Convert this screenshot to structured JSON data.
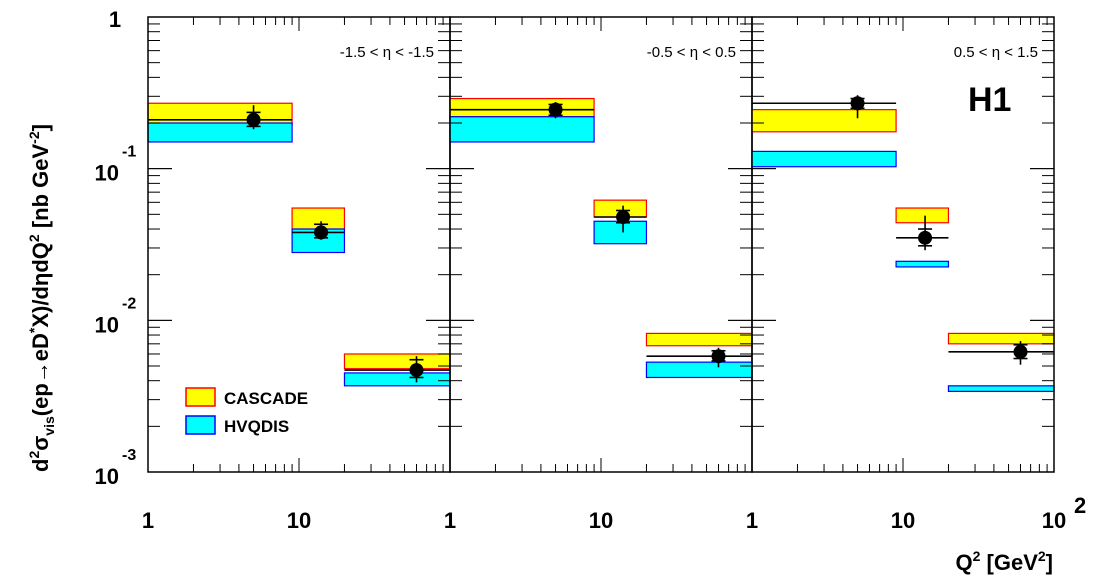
{
  "chart_data": {
    "type": "bar",
    "layout": "three panels sharing y axis",
    "y_scale": "log",
    "x_scale": "log",
    "ylim": [
      0.001,
      1
    ],
    "xlim": [
      1,
      100
    ],
    "y_ticks": [
      {
        "value": 1,
        "base": "1",
        "exp": ""
      },
      {
        "value": 0.1,
        "base": "10",
        "exp": "-1"
      },
      {
        "value": 0.01,
        "base": "10",
        "exp": "-2"
      },
      {
        "value": 0.001,
        "base": "10",
        "exp": "-3"
      }
    ],
    "x_ticks": [
      {
        "value": 1,
        "base": "1",
        "exp": ""
      },
      {
        "value": 10,
        "base": "10",
        "exp": ""
      },
      {
        "value": 100,
        "base": "10",
        "exp": "2"
      }
    ],
    "ylabel": {
      "parts": [
        "d",
        "2",
        "σ",
        "vis",
        "(ep→eD",
        "*",
        "X)/dηdQ",
        "2",
        " [nb GeV",
        "-2",
        "]"
      ]
    },
    "xlabel": {
      "parts": [
        "Q",
        "2",
        " [GeV",
        "2",
        "]"
      ]
    },
    "experiment_label": "H1",
    "legend": [
      {
        "label": "CASCADE",
        "fill": "#ffff00",
        "stroke": "#ff0000"
      },
      {
        "label": "HVQDIS",
        "fill": "#00ffff",
        "stroke": "#0000ff"
      }
    ],
    "colors": {
      "cascade_fill": "#ffff00",
      "cascade_stroke": "#ff0000",
      "hvqdis_fill": "#00ffff",
      "hvqdis_stroke": "#0000ff",
      "data": "#000000"
    },
    "panels": [
      {
        "eta_label": "-1.5 < η < -1.5",
        "bins": [
          {
            "x_low": 1,
            "x_high": 9,
            "data": {
              "x": 5,
              "y": 0.21,
              "y_lo_stat": 0.19,
              "y_hi_stat": 0.235,
              "y_lo_tot": 0.182,
              "y_hi_tot": 0.262
            },
            "cascade": [
              0.195,
              0.27
            ],
            "hvqdis": [
              0.15,
              0.2
            ]
          },
          {
            "x_low": 9,
            "x_high": 20,
            "data": {
              "x": 14,
              "y": 0.038,
              "y_lo_stat": 0.035,
              "y_hi_stat": 0.043,
              "y_lo_tot": 0.034,
              "y_hi_tot": 0.045
            },
            "cascade": [
              0.04,
              0.055
            ],
            "hvqdis": [
              0.028,
              0.04
            ]
          },
          {
            "x_low": 20,
            "x_high": 100,
            "data": {
              "x": 60,
              "y": 0.0047,
              "y_lo_stat": 0.0042,
              "y_hi_stat": 0.0055,
              "y_lo_tot": 0.0039,
              "y_hi_tot": 0.0058
            },
            "cascade": [
              0.0048,
              0.006
            ],
            "hvqdis": [
              0.0037,
              0.0045
            ]
          }
        ]
      },
      {
        "eta_label": "-0.5 < η < 0.5",
        "bins": [
          {
            "x_low": 1,
            "x_high": 9,
            "data": {
              "x": 5,
              "y": 0.245,
              "y_lo_stat": 0.225,
              "y_hi_stat": 0.265,
              "y_lo_tot": 0.215,
              "y_hi_tot": 0.275
            },
            "cascade": [
              0.22,
              0.29
            ],
            "hvqdis": [
              0.15,
              0.22
            ]
          },
          {
            "x_low": 9,
            "x_high": 20,
            "data": {
              "x": 14,
              "y": 0.048,
              "y_lo_stat": 0.044,
              "y_hi_stat": 0.053,
              "y_lo_tot": 0.038,
              "y_hi_tot": 0.057
            },
            "cascade": [
              0.048,
              0.062
            ],
            "hvqdis": [
              0.032,
              0.045
            ]
          },
          {
            "x_low": 20,
            "x_high": 100,
            "data": {
              "x": 60,
              "y": 0.0058,
              "y_lo_stat": 0.0054,
              "y_hi_stat": 0.0063,
              "y_lo_tot": 0.0049,
              "y_hi_tot": 0.0066
            },
            "cascade": [
              0.0068,
              0.0082
            ],
            "hvqdis": [
              0.0042,
              0.0053
            ]
          }
        ]
      },
      {
        "eta_label": "0.5 < η < 1.5",
        "bins": [
          {
            "x_low": 1,
            "x_high": 9,
            "data": {
              "x": 5,
              "y": 0.27,
              "y_lo_stat": 0.25,
              "y_hi_stat": 0.29,
              "y_lo_tot": 0.215,
              "y_hi_tot": 0.305
            },
            "cascade": [
              0.175,
              0.245
            ],
            "hvqdis": [
              0.103,
              0.13
            ]
          },
          {
            "x_low": 9,
            "x_high": 20,
            "data": {
              "x": 14,
              "y": 0.035,
              "y_lo_stat": 0.031,
              "y_hi_stat": 0.04,
              "y_lo_tot": 0.029,
              "y_hi_tot": 0.049
            },
            "cascade": [
              0.044,
              0.055
            ],
            "hvqdis": [
              0.0225,
              0.0245
            ]
          },
          {
            "x_low": 20,
            "x_high": 100,
            "data": {
              "x": 60,
              "y": 0.0062,
              "y_lo_stat": 0.0056,
              "y_hi_stat": 0.0069,
              "y_lo_tot": 0.0051,
              "y_hi_tot": 0.0073
            },
            "cascade": [
              0.007,
              0.0082
            ],
            "hvqdis": [
              0.0034,
              0.0037
            ]
          }
        ]
      }
    ]
  }
}
